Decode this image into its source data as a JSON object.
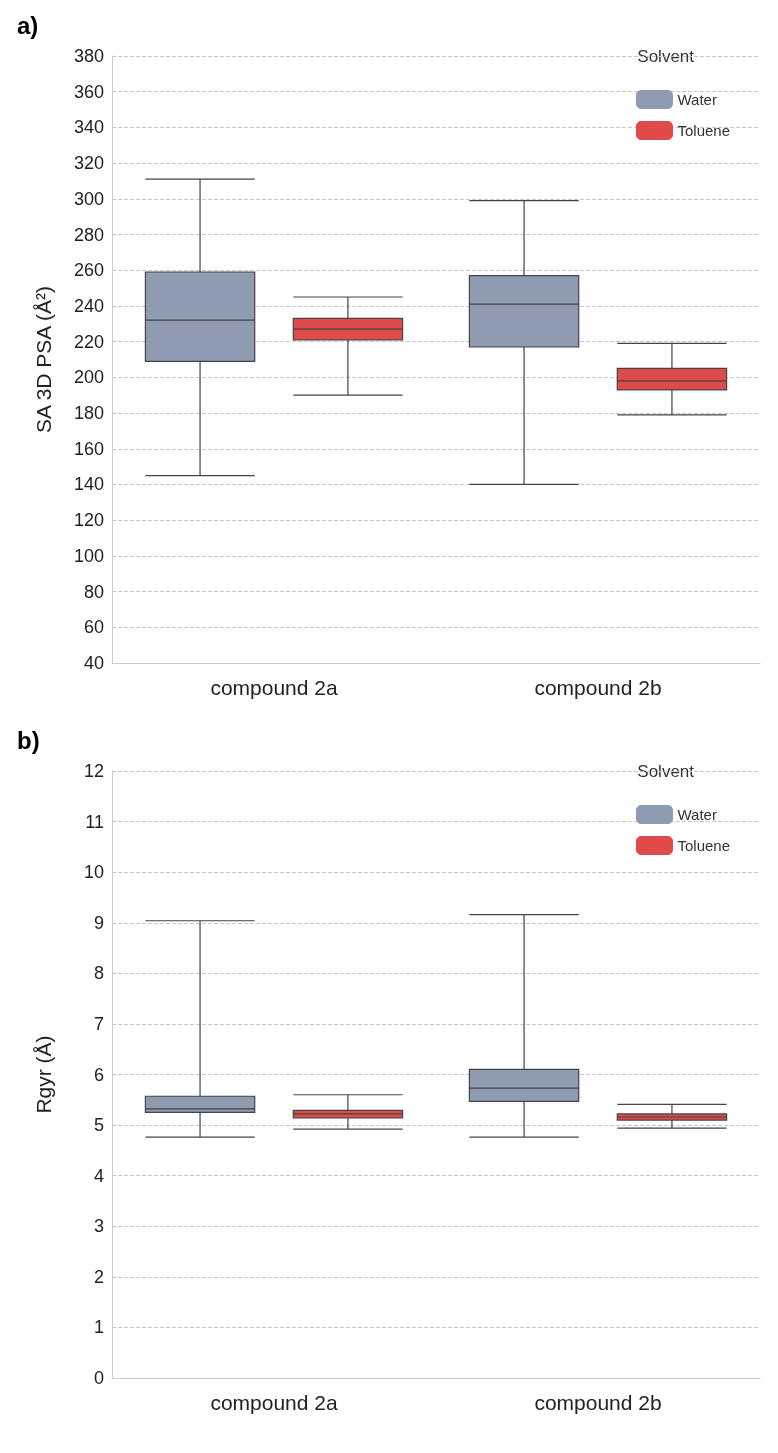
{
  "chart_data": [
    {
      "type": "box",
      "title": "a)",
      "ylabel": "SA 3D PSA (Å²)",
      "categories": [
        "compound 2a",
        "compound 2b"
      ],
      "legend_title": "Solvent",
      "legend": "top right",
      "grid": "y",
      "ylim": [
        40,
        380
      ],
      "yticks": [
        40,
        60,
        80,
        100,
        120,
        140,
        160,
        180,
        200,
        220,
        240,
        260,
        280,
        300,
        320,
        340,
        360,
        380
      ],
      "series": [
        {
          "name": "Water",
          "color": "#8e9bb0",
          "boxes": [
            {
              "low": 145,
              "q1": 209,
              "median": 232,
              "q3": 259,
              "high": 311
            },
            {
              "low": 140,
              "q1": 217,
              "median": 241,
              "q3": 257,
              "high": 299
            }
          ]
        },
        {
          "name": "Toluene",
          "color": "#e04a4a",
          "boxes": [
            {
              "low": 190,
              "q1": 221,
              "median": 227,
              "q3": 233,
              "high": 245
            },
            {
              "low": 179,
              "q1": 193,
              "median": 198,
              "q3": 205,
              "high": 219
            }
          ]
        }
      ]
    },
    {
      "type": "box",
      "title": "b)",
      "ylabel": "Rgyr (Å)",
      "categories": [
        "compound 2a",
        "compound 2b"
      ],
      "legend_title": "Solvent",
      "legend": "top right",
      "grid": "y",
      "ylim": [
        0,
        12
      ],
      "yticks": [
        0,
        1,
        2,
        3,
        4,
        5,
        6,
        7,
        8,
        9,
        10,
        11,
        12
      ],
      "series": [
        {
          "name": "Water",
          "color": "#8e9bb0",
          "boxes": [
            {
              "low": 4.76,
              "q1": 5.25,
              "median": 5.32,
              "q3": 5.57,
              "high": 9.04
            },
            {
              "low": 4.76,
              "q1": 5.47,
              "median": 5.73,
              "q3": 6.1,
              "high": 9.16
            }
          ]
        },
        {
          "name": "Toluene",
          "color": "#e04a4a",
          "boxes": [
            {
              "low": 4.92,
              "q1": 5.14,
              "median": 5.22,
              "q3": 5.29,
              "high": 5.6
            },
            {
              "low": 4.94,
              "q1": 5.1,
              "median": 5.16,
              "q3": 5.22,
              "high": 5.41
            }
          ]
        }
      ]
    }
  ]
}
